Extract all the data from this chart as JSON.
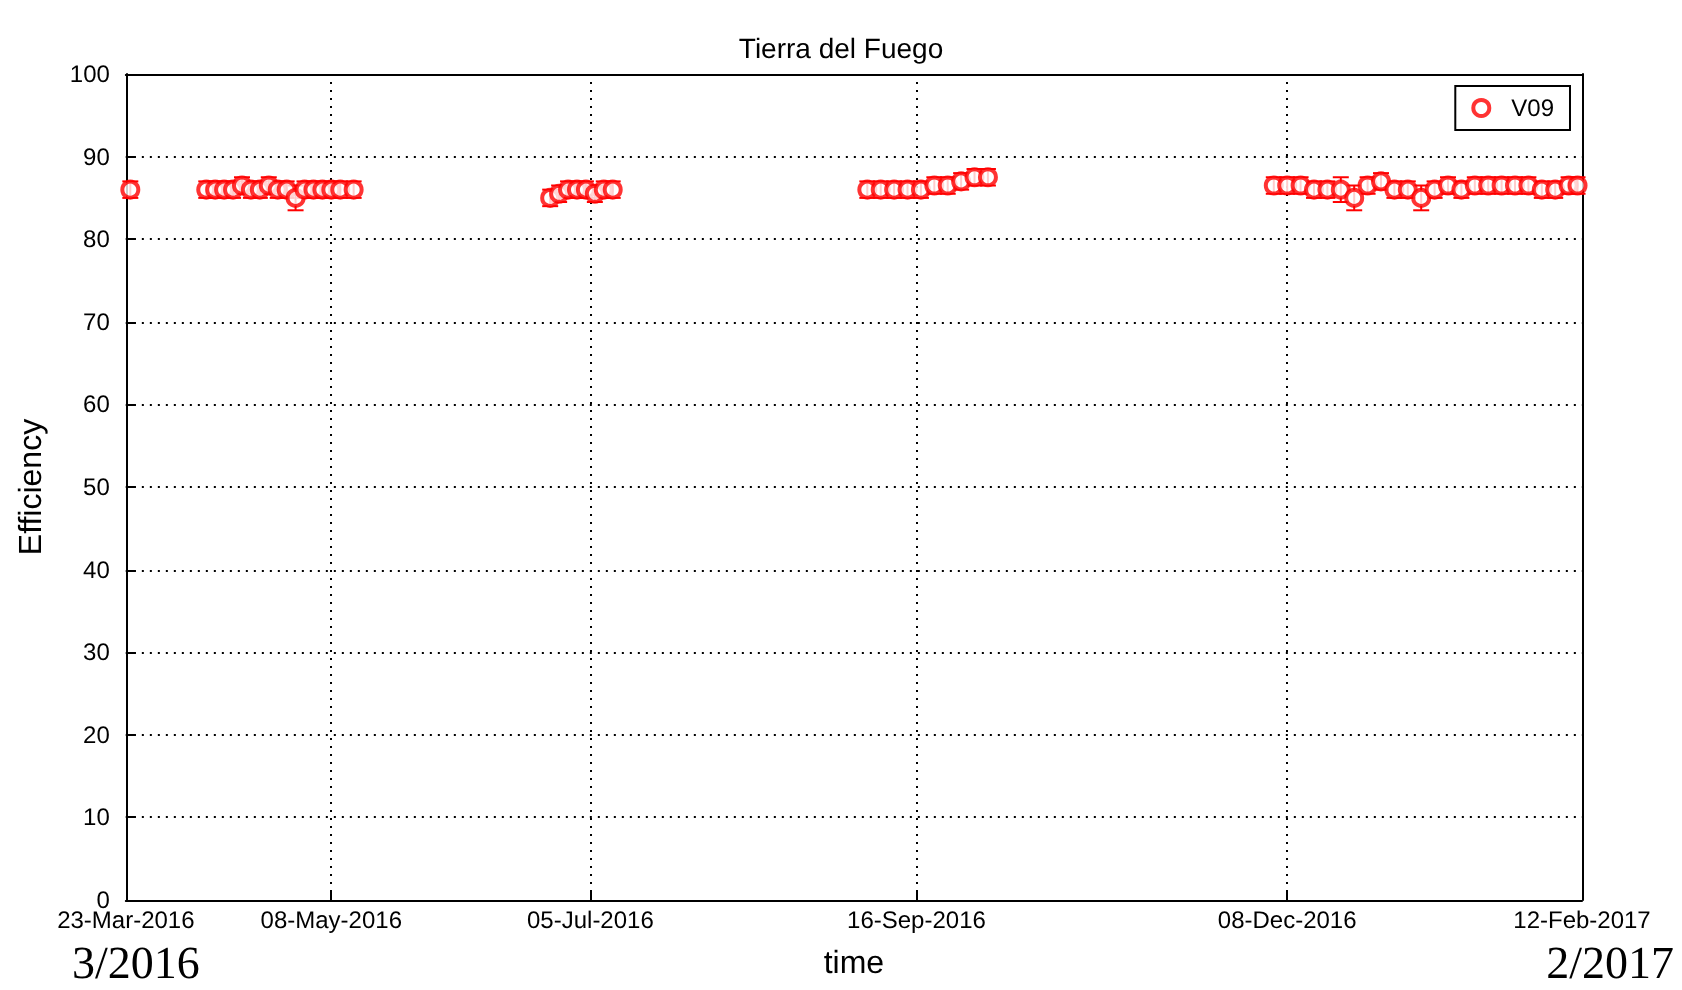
{
  "chart_data": {
    "type": "scatter",
    "title": "Tierra del Fuego",
    "xlabel": "time",
    "ylabel": "Efficiency",
    "xlim": [
      "2016-03-23",
      "2017-02-12"
    ],
    "xticks": [
      {
        "value": "2016-03-23",
        "label": "23-Mar-2016"
      },
      {
        "value": "2016-05-08",
        "label": "08-May-2016"
      },
      {
        "value": "2016-07-05",
        "label": "05-Jul-2016"
      },
      {
        "value": "2016-09-16",
        "label": "16-Sep-2016"
      },
      {
        "value": "2016-12-08",
        "label": "08-Dec-2016"
      },
      {
        "value": "2017-02-12",
        "label": "12-Feb-2017"
      }
    ],
    "ylim": [
      0,
      100
    ],
    "yticks": [
      0,
      10,
      20,
      30,
      40,
      50,
      60,
      70,
      80,
      90,
      100
    ],
    "grid": true,
    "legend": "top right",
    "marker": "circle",
    "annotations": [
      "3/2016",
      "2/2017"
    ],
    "series": [
      {
        "name": "V09",
        "color": "#ff0000",
        "x": [
          "2016-03-24",
          "2016-04-10",
          "2016-04-12",
          "2016-04-14",
          "2016-04-16",
          "2016-04-18",
          "2016-04-20",
          "2016-04-22",
          "2016-04-24",
          "2016-04-26",
          "2016-04-28",
          "2016-04-30",
          "2016-05-02",
          "2016-05-04",
          "2016-05-06",
          "2016-05-08",
          "2016-05-10",
          "2016-05-13",
          "2016-06-26",
          "2016-06-28",
          "2016-06-30",
          "2016-07-02",
          "2016-07-04",
          "2016-07-06",
          "2016-07-08",
          "2016-07-10",
          "2016-09-05",
          "2016-09-08",
          "2016-09-11",
          "2016-09-14",
          "2016-09-17",
          "2016-09-20",
          "2016-09-23",
          "2016-09-26",
          "2016-09-29",
          "2016-10-02",
          "2016-12-05",
          "2016-12-08",
          "2016-12-11",
          "2016-12-14",
          "2016-12-17",
          "2016-12-20",
          "2016-12-23",
          "2016-12-26",
          "2016-12-29",
          "2017-01-01",
          "2017-01-04",
          "2017-01-07",
          "2017-01-10",
          "2017-01-13",
          "2017-01-16",
          "2017-01-19",
          "2017-01-22",
          "2017-01-25",
          "2017-01-28",
          "2017-01-31",
          "2017-02-03",
          "2017-02-06",
          "2017-02-09",
          "2017-02-11"
        ],
        "values": [
          86,
          86,
          86,
          86,
          86,
          86.5,
          86,
          86,
          86.5,
          86,
          86,
          85,
          86,
          86,
          86,
          86,
          86,
          86,
          85,
          85.5,
          86,
          86,
          86,
          85.5,
          86,
          86,
          86,
          86,
          86,
          86,
          86,
          86.5,
          86.5,
          87,
          87.5,
          87.5,
          86.5,
          86.5,
          86.5,
          86,
          86,
          86,
          85,
          86.5,
          87,
          86,
          86,
          85,
          86,
          86.5,
          86,
          86.5,
          86.5,
          86.5,
          86.5,
          86.5,
          86,
          86,
          86.5,
          86.5
        ],
        "errors": [
          1,
          1,
          1,
          1,
          1,
          1,
          1,
          1,
          1,
          1,
          1,
          1.5,
          1,
          1,
          1,
          1,
          1,
          1,
          1,
          1,
          1,
          1,
          1,
          1,
          1,
          1,
          1,
          1,
          1,
          1,
          1,
          1,
          1,
          1,
          1,
          1,
          1,
          1,
          1,
          1,
          1,
          1.5,
          1.5,
          1,
          1,
          1,
          1,
          1.5,
          1,
          1,
          1,
          1,
          1,
          1,
          1,
          1,
          1,
          1,
          1,
          1
        ]
      }
    ]
  }
}
